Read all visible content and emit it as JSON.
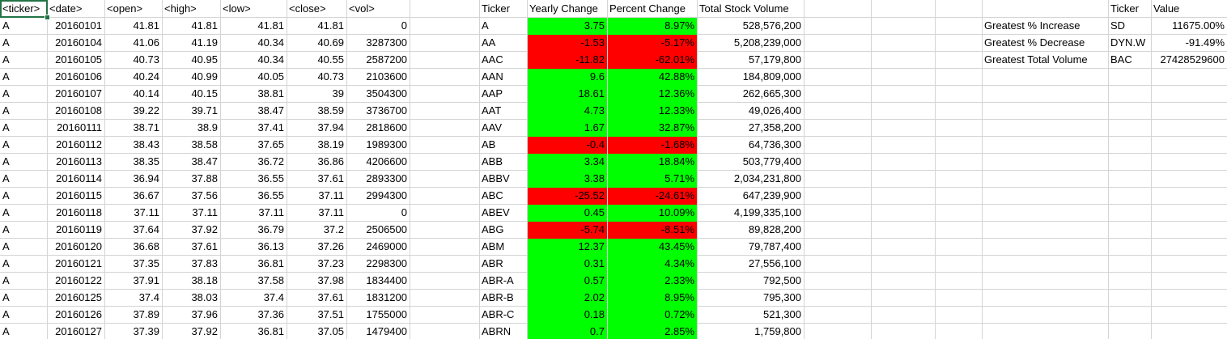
{
  "colors": {
    "positive": "#00ff00",
    "negative": "#ff0000",
    "gridline": "#d4d4d4",
    "selection": "#217346"
  },
  "raw_headers": [
    "<ticker>",
    "<date>",
    "<open>",
    "<high>",
    "<low>",
    "<close>",
    "<vol>"
  ],
  "raw_rows": [
    [
      "A",
      "20160101",
      "41.81",
      "41.81",
      "41.81",
      "41.81",
      "0"
    ],
    [
      "A",
      "20160104",
      "41.06",
      "41.19",
      "40.34",
      "40.69",
      "3287300"
    ],
    [
      "A",
      "20160105",
      "40.73",
      "40.95",
      "40.34",
      "40.55",
      "2587200"
    ],
    [
      "A",
      "20160106",
      "40.24",
      "40.99",
      "40.05",
      "40.73",
      "2103600"
    ],
    [
      "A",
      "20160107",
      "40.14",
      "40.15",
      "38.81",
      "39",
      "3504300"
    ],
    [
      "A",
      "20160108",
      "39.22",
      "39.71",
      "38.47",
      "38.59",
      "3736700"
    ],
    [
      "A",
      "20160111",
      "38.71",
      "38.9",
      "37.41",
      "37.94",
      "2818600"
    ],
    [
      "A",
      "20160112",
      "38.43",
      "38.58",
      "37.65",
      "38.19",
      "1989300"
    ],
    [
      "A",
      "20160113",
      "38.35",
      "38.47",
      "36.72",
      "36.86",
      "4206600"
    ],
    [
      "A",
      "20160114",
      "36.94",
      "37.88",
      "36.55",
      "37.61",
      "2893300"
    ],
    [
      "A",
      "20160115",
      "36.67",
      "37.56",
      "36.55",
      "37.11",
      "2994300"
    ],
    [
      "A",
      "20160118",
      "37.11",
      "37.11",
      "37.11",
      "37.11",
      "0"
    ],
    [
      "A",
      "20160119",
      "37.64",
      "37.92",
      "36.79",
      "37.2",
      "2506500"
    ],
    [
      "A",
      "20160120",
      "36.68",
      "37.61",
      "36.13",
      "37.26",
      "2469000"
    ],
    [
      "A",
      "20160121",
      "37.35",
      "37.83",
      "36.81",
      "37.23",
      "2298300"
    ],
    [
      "A",
      "20160122",
      "37.91",
      "38.18",
      "37.58",
      "37.98",
      "1834400"
    ],
    [
      "A",
      "20160125",
      "37.4",
      "38.03",
      "37.4",
      "37.61",
      "1831200"
    ],
    [
      "A",
      "20160126",
      "37.89",
      "37.96",
      "37.36",
      "37.51",
      "1755000"
    ],
    [
      "A",
      "20160127",
      "37.39",
      "37.92",
      "36.81",
      "37.05",
      "1479400"
    ]
  ],
  "summary_headers": [
    "Ticker",
    "Yearly Change",
    "Percent Change",
    "Total Stock Volume"
  ],
  "summary_rows": [
    {
      "ticker": "A",
      "change": "3.75",
      "percent": "8.97%",
      "volume": "528,576,200",
      "positive": true
    },
    {
      "ticker": "AA",
      "change": "-1.53",
      "percent": "-5.17%",
      "volume": "5,208,239,000",
      "positive": false
    },
    {
      "ticker": "AAC",
      "change": "-11.82",
      "percent": "-62.01%",
      "volume": "57,179,800",
      "positive": false
    },
    {
      "ticker": "AAN",
      "change": "9.6",
      "percent": "42.88%",
      "volume": "184,809,000",
      "positive": true
    },
    {
      "ticker": "AAP",
      "change": "18.61",
      "percent": "12.36%",
      "volume": "262,665,300",
      "positive": true
    },
    {
      "ticker": "AAT",
      "change": "4.73",
      "percent": "12.33%",
      "volume": "49,026,400",
      "positive": true
    },
    {
      "ticker": "AAV",
      "change": "1.67",
      "percent": "32.87%",
      "volume": "27,358,200",
      "positive": true
    },
    {
      "ticker": "AB",
      "change": "-0.4",
      "percent": "-1.68%",
      "volume": "64,736,300",
      "positive": false
    },
    {
      "ticker": "ABB",
      "change": "3.34",
      "percent": "18.84%",
      "volume": "503,779,400",
      "positive": true
    },
    {
      "ticker": "ABBV",
      "change": "3.38",
      "percent": "5.71%",
      "volume": "2,034,231,800",
      "positive": true
    },
    {
      "ticker": "ABC",
      "change": "-25.52",
      "percent": "-24.61%",
      "volume": "647,239,900",
      "positive": false
    },
    {
      "ticker": "ABEV",
      "change": "0.45",
      "percent": "10.09%",
      "volume": "4,199,335,100",
      "positive": true
    },
    {
      "ticker": "ABG",
      "change": "-5.74",
      "percent": "-8.51%",
      "volume": "89,828,200",
      "positive": false
    },
    {
      "ticker": "ABM",
      "change": "12.37",
      "percent": "43.45%",
      "volume": "79,787,400",
      "positive": true
    },
    {
      "ticker": "ABR",
      "change": "0.31",
      "percent": "4.34%",
      "volume": "27,556,100",
      "positive": true
    },
    {
      "ticker": "ABR-A",
      "change": "0.57",
      "percent": "2.33%",
      "volume": "792,500",
      "positive": true
    },
    {
      "ticker": "ABR-B",
      "change": "2.02",
      "percent": "8.95%",
      "volume": "795,300",
      "positive": true
    },
    {
      "ticker": "ABR-C",
      "change": "0.18",
      "percent": "0.72%",
      "volume": "521,300",
      "positive": true
    },
    {
      "ticker": "ABRN",
      "change": "0.7",
      "percent": "2.85%",
      "volume": "1,759,800",
      "positive": true
    }
  ],
  "greatest_headers": [
    "Ticker",
    "Value"
  ],
  "greatest_rows": [
    {
      "label": "Greatest % Increase",
      "ticker": "SD",
      "value": "11675.00%"
    },
    {
      "label": "Greatest % Decrease",
      "ticker": "DYN.W",
      "value": "-91.49%"
    },
    {
      "label": "Greatest Total Volume",
      "ticker": "BAC",
      "value": "27428529600"
    }
  ]
}
